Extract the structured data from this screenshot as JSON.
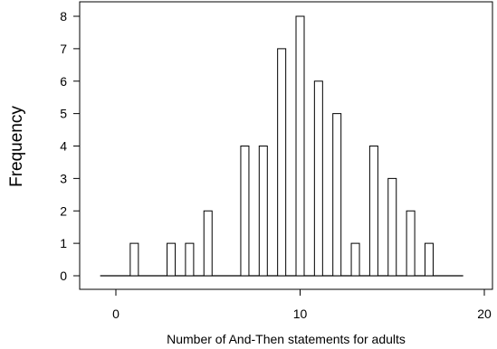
{
  "chart_data": {
    "type": "bar",
    "xlabel": "Number of And-Then statements for adults",
    "ylabel": "Frequency",
    "x": [
      1,
      3,
      4,
      5,
      7,
      8,
      9,
      10,
      11,
      12,
      13,
      14,
      15,
      16,
      17
    ],
    "values": [
      1,
      1,
      1,
      2,
      4,
      4,
      7,
      8,
      6,
      5,
      1,
      4,
      3,
      2,
      1
    ],
    "xlim": [
      -1,
      19
    ],
    "ylim": [
      0,
      8
    ],
    "xticks": [
      0,
      10,
      20
    ],
    "yticks": [
      0,
      1,
      2,
      3,
      4,
      5,
      6,
      7,
      8
    ],
    "grid": false,
    "colors": {
      "bar_fill": "#ffffff",
      "bar_stroke": "#000000"
    }
  }
}
